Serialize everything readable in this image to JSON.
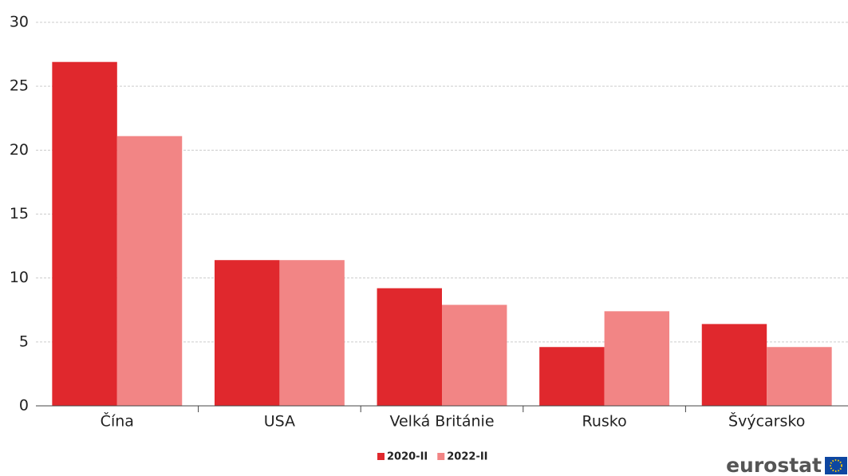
{
  "chart_data": {
    "type": "bar",
    "categories": [
      "Čína",
      "USA",
      "Velká Británie",
      "Rusko",
      "Švýcarsko"
    ],
    "series": [
      {
        "name": "2020-II",
        "color": "#e0282d",
        "values": [
          26.9,
          11.4,
          9.2,
          4.6,
          6.4
        ]
      },
      {
        "name": "2022-II",
        "color": "#f28585",
        "values": [
          21.1,
          11.4,
          7.9,
          7.4,
          4.6
        ]
      }
    ],
    "ylim": [
      0,
      30
    ],
    "yticks": [
      0,
      5,
      10,
      15,
      20,
      25,
      30
    ],
    "grid": true,
    "legend": "bottom",
    "logo": "eurostat"
  }
}
